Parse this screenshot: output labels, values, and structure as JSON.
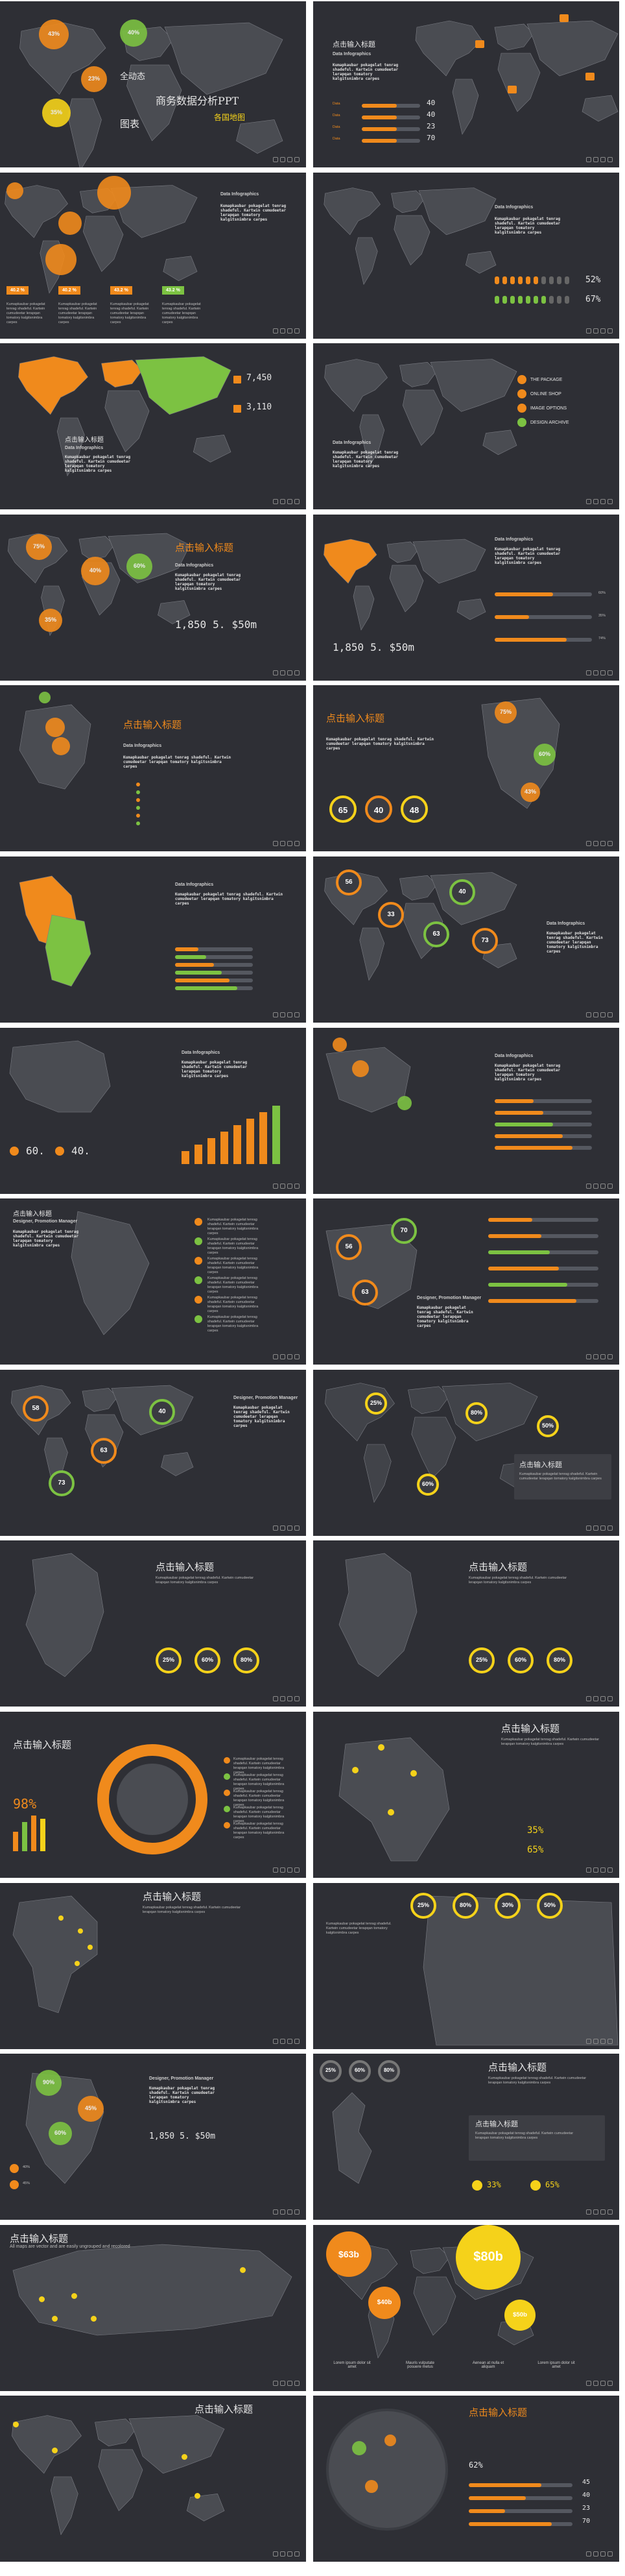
{
  "cover": {
    "title_line1": "全动态",
    "title_line2": "商务数据分析PPT",
    "title_line3": "图表",
    "title_line4": "各国地图",
    "bubbles": [
      "43%",
      "40%",
      "23%",
      "35%"
    ]
  },
  "common": {
    "heading": "点击输入标题",
    "subhead": "Data Infographics",
    "manager": "Designer, Promotion Manager",
    "body": "Kumapkaubar pokagelat tenrag shadeful. Kartwin cumudeetar lerapqan tomatory kalgitsnimbra carpes"
  },
  "slides": {
    "s2": {
      "values": [
        "40",
        "40",
        "23",
        "70"
      ],
      "sub_title": "点击输入标题"
    },
    "s3": {
      "tags": [
        "40.2 %",
        "40.2 %",
        "43.2 %",
        "43.2 %"
      ]
    },
    "s4": {
      "percents": [
        "52%",
        "67%"
      ],
      "label": "Data Infographics"
    },
    "s5": {
      "values": [
        "7,450",
        "3,110"
      ],
      "label": "点击输入标题"
    },
    "s6": {
      "items": [
        "THE PACKAGE",
        "ONLINE SHOP",
        "IMAGE OPTIONS",
        "DESIGN ARCHIVE"
      ]
    },
    "s7": {
      "bubbles": [
        "75%",
        "40%",
        "60%",
        "35%"
      ],
      "numbers": [
        "1,850",
        "5.",
        "$50m"
      ]
    },
    "s8": {
      "numbers": [
        "1,850",
        "5.",
        "$50m"
      ],
      "bars": [
        "60%",
        "35%",
        "74%"
      ]
    },
    "s10": {
      "bubbles": [
        "75%",
        "60%",
        "43%"
      ],
      "numbers": [
        "65",
        "40",
        "48"
      ]
    },
    "s12": {
      "rings": [
        "56",
        "40",
        "33",
        "63",
        "73"
      ]
    },
    "s13": {
      "numbers": [
        "60.",
        "40."
      ]
    },
    "s15": {
      "rings": [
        "56",
        "70",
        "63"
      ]
    },
    "s16": {
      "rings": [
        "58",
        "40",
        "63",
        "73"
      ]
    },
    "s17": {
      "rings": [
        "25%",
        "80%",
        "50%",
        "60%"
      ],
      "callout": "点击输入标题"
    },
    "s18": {
      "rings": [
        "25%",
        "60%",
        "80%"
      ]
    },
    "s19": {
      "rings": [
        "25%",
        "60%",
        "80%"
      ]
    },
    "s20": {
      "big": "98%"
    },
    "s21": {
      "percents": [
        "35%",
        "65%"
      ]
    },
    "s23": {
      "rings": [
        "25%",
        "80%",
        "30%",
        "50%"
      ]
    },
    "s24": {
      "bubbles": [
        "90%",
        "45%",
        "60%"
      ],
      "legend": [
        "40%",
        "45%"
      ],
      "numbers": [
        "1,850",
        "5.",
        "$50m"
      ]
    },
    "s25": {
      "rings": [
        "25%",
        "60%",
        "80%"
      ],
      "callout": "点击输入标题",
      "percents": [
        "33%",
        "65%"
      ]
    },
    "s26": {
      "desc": "All maps are vector and are easily ungrouped and recolored"
    },
    "s27": {
      "prices": [
        "$63b",
        "$80b",
        "$40b",
        "$50b"
      ],
      "captions": [
        "Lorem ipsum dolor sit amet",
        "Mauris vulputate posuere metus",
        "Aenean at nulla et aliquam",
        "Lorem ipsum dolor sit amet"
      ]
    },
    "s29": {
      "values": [
        "45",
        "40",
        "23",
        "70"
      ],
      "percent": "62%"
    }
  },
  "colors": {
    "bg": "#2e2f35",
    "orange": "#f08a1c",
    "green": "#7cc242",
    "yellow": "#f5d21a",
    "map": "#4a4c52",
    "border": "#7b7d84"
  }
}
